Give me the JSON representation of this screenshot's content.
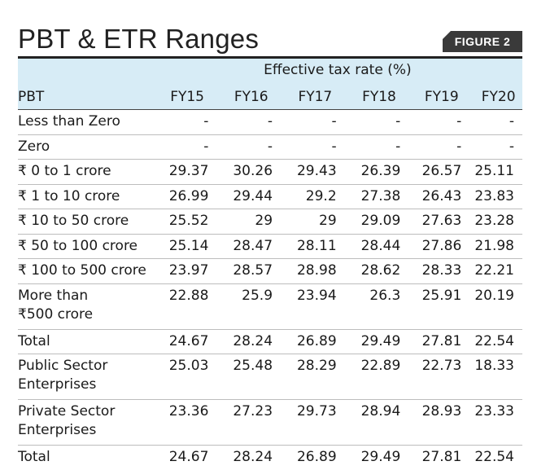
{
  "title": "PBT & ETR Ranges",
  "badge": "FIGURE 2",
  "header": {
    "group_label": "Effective tax rate (%)",
    "row_label": "PBT",
    "years": [
      "FY15",
      "FY16",
      "FY17",
      "FY18",
      "FY19",
      "FY20"
    ]
  },
  "rows": [
    {
      "label": "Less than Zero",
      "values": [
        "-",
        "-",
        "-",
        "-",
        "-",
        "-"
      ]
    },
    {
      "label": "Zero",
      "values": [
        "-",
        "-",
        "-",
        "-",
        "-",
        "-"
      ]
    },
    {
      "label": "₹ 0 to 1 crore",
      "values": [
        "29.37",
        "30.26",
        "29.43",
        "26.39",
        "26.57",
        "25.11"
      ]
    },
    {
      "label": "₹ 1 to 10 crore",
      "values": [
        "26.99",
        "29.44",
        "29.2",
        "27.38",
        "26.43",
        "23.83"
      ]
    },
    {
      "label": "₹ 10 to 50 crore",
      "values": [
        "25.52",
        "29",
        "29",
        "29.09",
        "27.63",
        "23.28"
      ]
    },
    {
      "label": "₹ 50 to 100 crore",
      "values": [
        "25.14",
        "28.47",
        "28.11",
        "28.44",
        "27.86",
        "21.98"
      ]
    },
    {
      "label": "₹ 100 to 500 crore",
      "values": [
        "23.97",
        "28.57",
        "28.98",
        "28.62",
        "28.33",
        "22.21"
      ]
    },
    {
      "label": "More than\n₹500 crore",
      "values": [
        "22.88",
        "25.9",
        "23.94",
        "26.3",
        "25.91",
        "20.19"
      ]
    },
    {
      "label": "Total",
      "values": [
        "24.67",
        "28.24",
        "26.89",
        "29.49",
        "27.81",
        "22.54"
      ]
    },
    {
      "label": "Public Sector\nEnterprises",
      "values": [
        "25.03",
        "25.48",
        "28.29",
        "22.89",
        "22.73",
        "18.33"
      ]
    },
    {
      "label": "Private Sector\nEnterprises",
      "values": [
        "23.36",
        "27.23",
        "29.73",
        "28.94",
        "28.93",
        "23.33"
      ]
    },
    {
      "label": "Total",
      "values": [
        "24.67",
        "28.24",
        "26.89",
        "29.49",
        "27.81",
        "22.54"
      ]
    }
  ],
  "chart_data": {
    "type": "table",
    "title": "PBT & ETR Ranges",
    "columns": [
      "PBT",
      "FY15",
      "FY16",
      "FY17",
      "FY18",
      "FY19",
      "FY20"
    ],
    "column_group": "Effective tax rate (%)",
    "rows": [
      [
        "Less than Zero",
        null,
        null,
        null,
        null,
        null,
        null
      ],
      [
        "Zero",
        null,
        null,
        null,
        null,
        null,
        null
      ],
      [
        "₹ 0 to 1 crore",
        29.37,
        30.26,
        29.43,
        26.39,
        26.57,
        25.11
      ],
      [
        "₹ 1 to 10 crore",
        26.99,
        29.44,
        29.2,
        27.38,
        26.43,
        23.83
      ],
      [
        "₹ 10 to 50 crore",
        25.52,
        29,
        29,
        29.09,
        27.63,
        23.28
      ],
      [
        "₹ 50 to 100 crore",
        25.14,
        28.47,
        28.11,
        28.44,
        27.86,
        21.98
      ],
      [
        "₹ 100 to 500 crore",
        23.97,
        28.57,
        28.98,
        28.62,
        28.33,
        22.21
      ],
      [
        "More than ₹500 crore",
        22.88,
        25.9,
        23.94,
        26.3,
        25.91,
        20.19
      ],
      [
        "Total",
        24.67,
        28.24,
        26.89,
        29.49,
        27.81,
        22.54
      ],
      [
        "Public Sector Enterprises",
        25.03,
        25.48,
        28.29,
        22.89,
        22.73,
        18.33
      ],
      [
        "Private Sector Enterprises",
        23.36,
        27.23,
        29.73,
        28.94,
        28.93,
        23.33
      ],
      [
        "Total",
        24.67,
        28.24,
        26.89,
        29.49,
        27.81,
        22.54
      ]
    ]
  },
  "colors": {
    "header_bg": "#d7ecf6",
    "badge_bg": "#3a3a3a",
    "text": "#1a1a1a"
  }
}
